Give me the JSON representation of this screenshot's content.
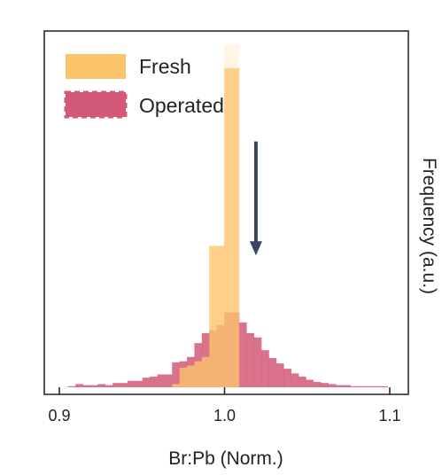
{
  "chart_data": {
    "type": "bar",
    "subtype": "overlaid-histogram",
    "title": "",
    "xlabel": "Br:Pb (Norm.)",
    "ylabel": "Frequency (a.u.)",
    "ylabel_position": "right",
    "xlim": [
      0.9,
      1.1
    ],
    "ylim": [
      0,
      1.0
    ],
    "xticks": [
      "0.9",
      "1.0",
      "1.1"
    ],
    "grid": false,
    "legend_position": "top-left",
    "bin_width": 0.0045,
    "series": [
      {
        "name": "Fresh",
        "color": "#fcc46a",
        "style": "solid",
        "points": [
          {
            "x": 0.9705,
            "y": 0.009
          },
          {
            "x": 0.975,
            "y": 0.055
          },
          {
            "x": 0.9795,
            "y": 0.061
          },
          {
            "x": 0.984,
            "y": 0.073
          },
          {
            "x": 0.9885,
            "y": 0.085
          },
          {
            "x": 0.993,
            "y": 0.397
          },
          {
            "x": 0.9975,
            "y": 0.397
          },
          {
            "x": 1.002,
            "y": 0.896
          },
          {
            "x": 1.0065,
            "y": 0.896
          }
        ],
        "clipped_overflow": [
          {
            "x": 1.002,
            "y": 1.0
          },
          {
            "x": 1.0065,
            "y": 1.0
          }
        ]
      },
      {
        "name": "Operated",
        "color": "#d25a78",
        "style": "dashed-edge",
        "points": [
          {
            "x": 0.9075,
            "y": 0.003
          },
          {
            "x": 0.912,
            "y": 0.009
          },
          {
            "x": 0.9165,
            "y": 0.006
          },
          {
            "x": 0.921,
            "y": 0.006
          },
          {
            "x": 0.9255,
            "y": 0.009
          },
          {
            "x": 0.93,
            "y": 0.006
          },
          {
            "x": 0.9345,
            "y": 0.012
          },
          {
            "x": 0.939,
            "y": 0.012
          },
          {
            "x": 0.9435,
            "y": 0.018
          },
          {
            "x": 0.948,
            "y": 0.018
          },
          {
            "x": 0.9525,
            "y": 0.027
          },
          {
            "x": 0.957,
            "y": 0.03
          },
          {
            "x": 0.9615,
            "y": 0.036
          },
          {
            "x": 0.966,
            "y": 0.036
          },
          {
            "x": 0.9705,
            "y": 0.07
          },
          {
            "x": 0.975,
            "y": 0.073
          },
          {
            "x": 0.9795,
            "y": 0.085
          },
          {
            "x": 0.984,
            "y": 0.124
          },
          {
            "x": 0.9885,
            "y": 0.152
          },
          {
            "x": 0.993,
            "y": 0.16
          },
          {
            "x": 0.9975,
            "y": 0.175
          },
          {
            "x": 1.002,
            "y": 0.21
          },
          {
            "x": 1.0065,
            "y": 0.21
          },
          {
            "x": 1.011,
            "y": 0.182
          },
          {
            "x": 1.0155,
            "y": 0.152
          },
          {
            "x": 1.02,
            "y": 0.14
          },
          {
            "x": 1.0245,
            "y": 0.104
          },
          {
            "x": 1.029,
            "y": 0.082
          },
          {
            "x": 1.0335,
            "y": 0.067
          },
          {
            "x": 1.038,
            "y": 0.052
          },
          {
            "x": 1.0425,
            "y": 0.039
          },
          {
            "x": 1.047,
            "y": 0.03
          },
          {
            "x": 1.0515,
            "y": 0.021
          },
          {
            "x": 1.056,
            "y": 0.015
          },
          {
            "x": 1.0605,
            "y": 0.012
          },
          {
            "x": 1.065,
            "y": 0.009
          },
          {
            "x": 1.0695,
            "y": 0.006
          },
          {
            "x": 1.074,
            "y": 0.006
          },
          {
            "x": 1.0785,
            "y": 0.003
          },
          {
            "x": 1.083,
            "y": 0.003
          },
          {
            "x": 1.0875,
            "y": 0.003
          },
          {
            "x": 1.092,
            "y": 0.003
          },
          {
            "x": 1.0965,
            "y": 0.003
          }
        ]
      }
    ],
    "annotations": [
      {
        "type": "arrow",
        "direction": "down",
        "color": "#3b4760",
        "x": 1.019,
        "y_from": 0.69,
        "y_to": 0.37
      }
    ]
  }
}
